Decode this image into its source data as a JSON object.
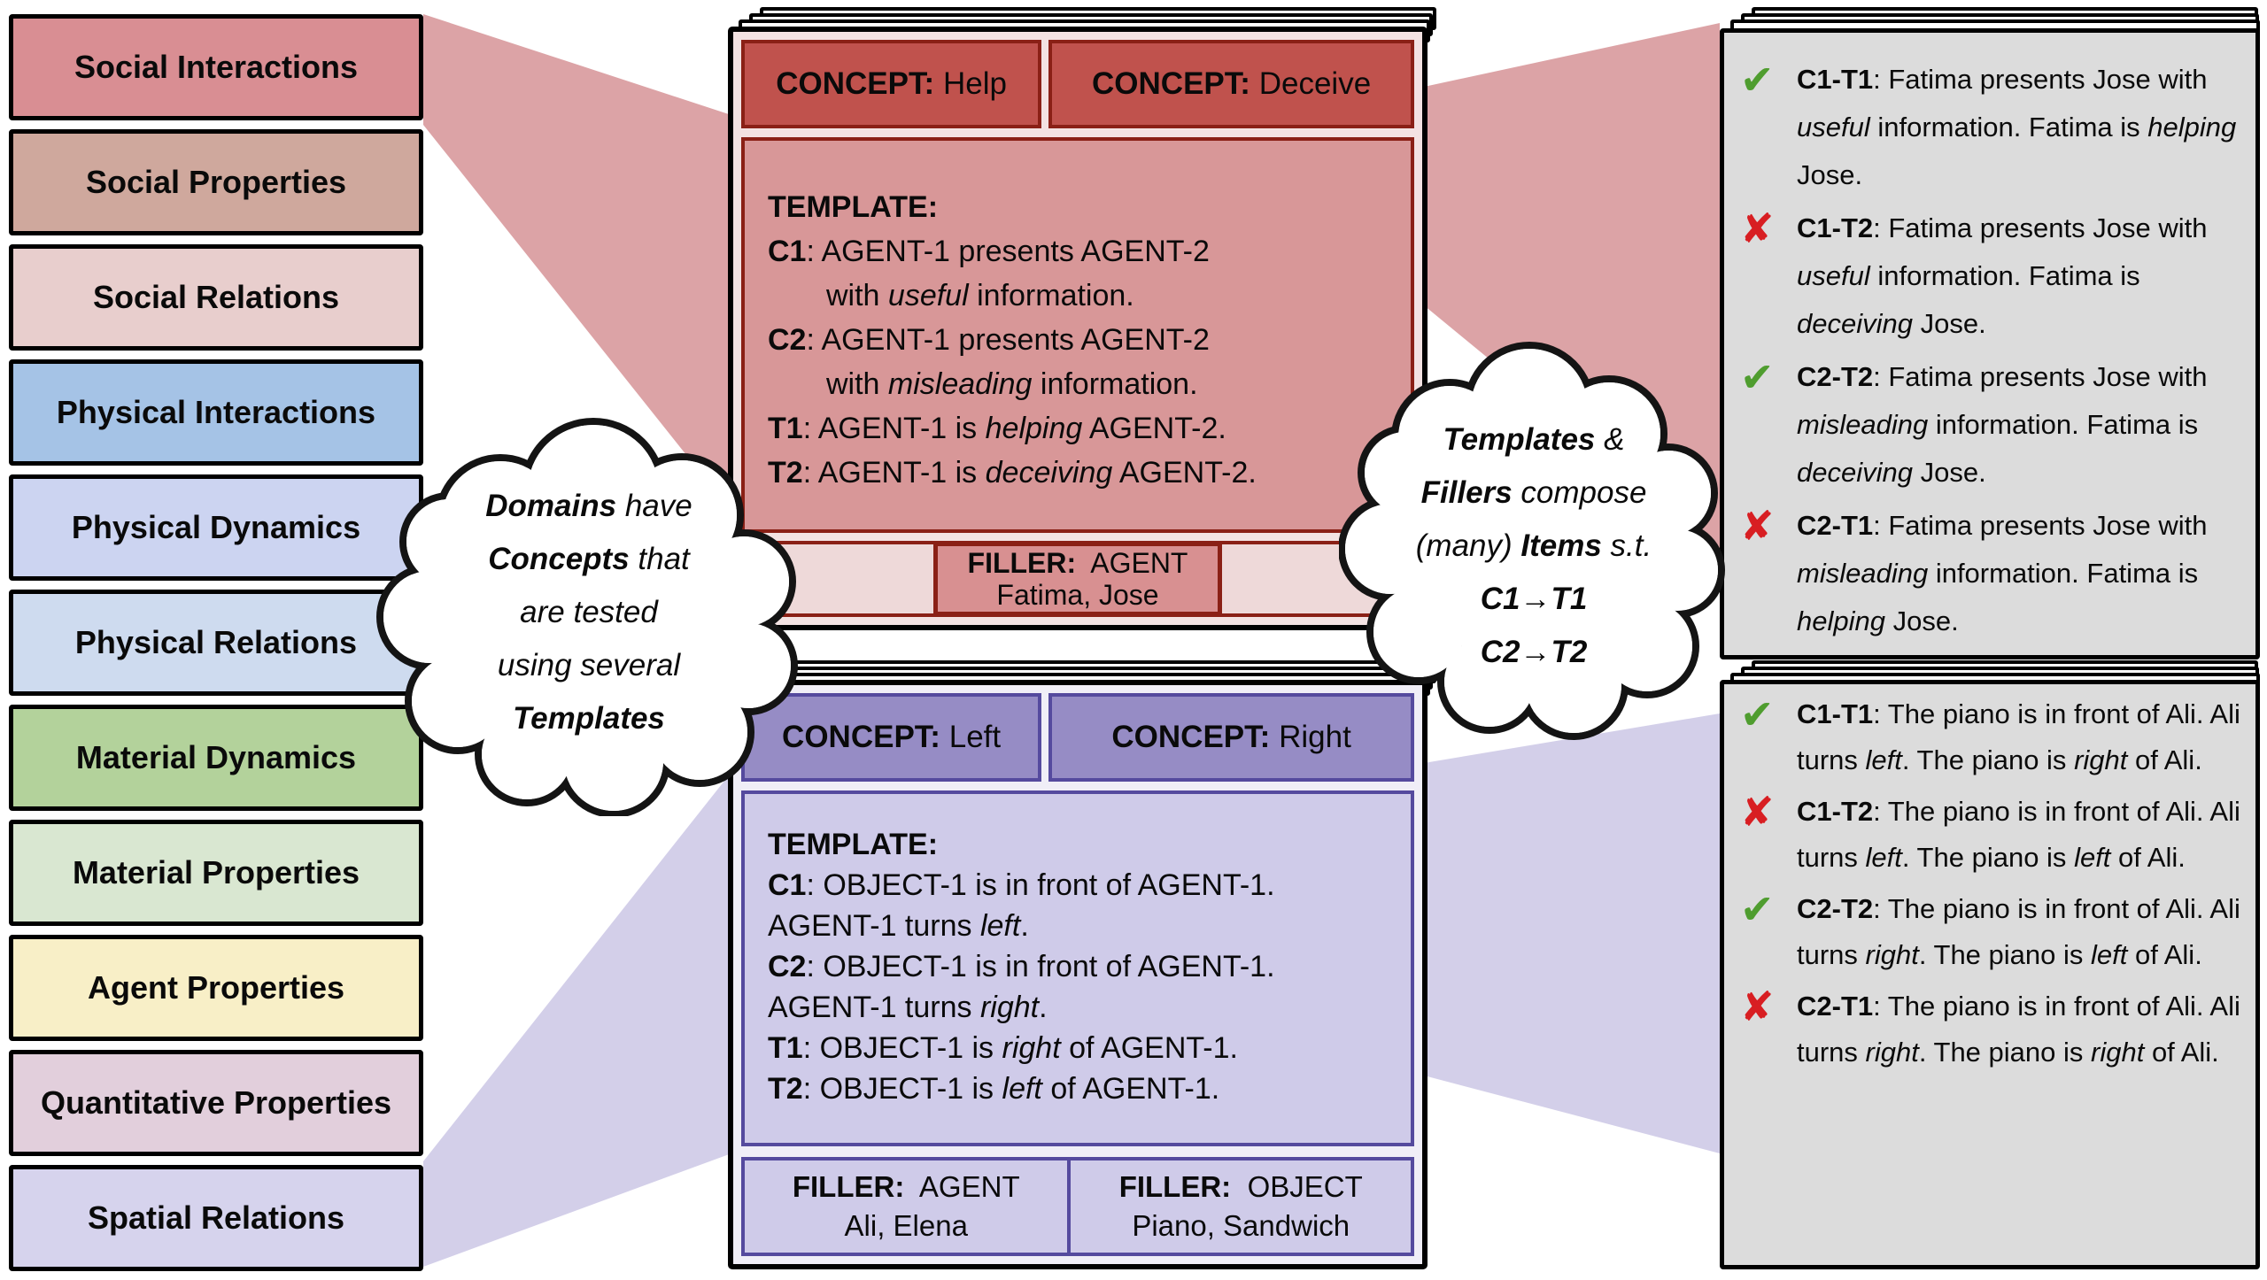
{
  "domain_list": [
    {
      "label": "Social Interactions",
      "color": "#d98e93"
    },
    {
      "label": "Social Properties",
      "color": "#cfa89d"
    },
    {
      "label": "Social Relations",
      "color": "#e8cecd"
    },
    {
      "label": "Physical Interactions",
      "color": "#a5c3e6"
    },
    {
      "label": "Physical Dynamics",
      "color": "#ccd4f1"
    },
    {
      "label": "Physical Relations",
      "color": "#cedbef"
    },
    {
      "label": "Material Dynamics",
      "color": "#b3d29b"
    },
    {
      "label": "Material Properties",
      "color": "#d9e7d1"
    },
    {
      "label": "Agent Properties",
      "color": "#f8efc7"
    },
    {
      "label": "Quantitative Properties",
      "color": "#e2cfdc"
    },
    {
      "label": "Spatial Relations",
      "color": "#d6d3ed"
    }
  ],
  "concept_cards": [
    {
      "domain": "Social Interactions",
      "colors": {
        "header_bg": "#c0524d",
        "accent_border": "#8a2016",
        "body_bg": "#d89798",
        "margin_bg": "#f3e2e2",
        "filler_strip_bg": "#eed9d9",
        "filler_box_bg": "#d89091"
      },
      "concepts": [
        {
          "label": "CONCEPT:",
          "value": "Help"
        },
        {
          "label": "CONCEPT:",
          "value": "Deceive"
        }
      ],
      "template_lines": [
        {
          "segments": [
            {
              "t": "TEMPLATE:",
              "b": true
            }
          ]
        },
        {
          "segments": [
            {
              "t": "C1",
              "b": true
            },
            {
              "t": ": AGENT-1 presents AGENT-2"
            }
          ]
        },
        {
          "indent": true,
          "segments": [
            {
              "t": "with "
            },
            {
              "t": "useful",
              "i": true
            },
            {
              "t": " information."
            }
          ]
        },
        {
          "segments": [
            {
              "t": "C2",
              "b": true
            },
            {
              "t": ": AGENT-1 presents AGENT-2"
            }
          ]
        },
        {
          "indent": true,
          "segments": [
            {
              "t": "with "
            },
            {
              "t": "misleading",
              "i": true
            },
            {
              "t": " information."
            }
          ]
        },
        {
          "segments": [
            {
              "t": "T1",
              "b": true
            },
            {
              "t": ": AGENT-1 is "
            },
            {
              "t": "helping",
              "i": true
            },
            {
              "t": " AGENT-2."
            }
          ]
        },
        {
          "segments": [
            {
              "t": "T2",
              "b": true
            },
            {
              "t": ": AGENT-1 is "
            },
            {
              "t": "deceiving",
              "i": true
            },
            {
              "t": " AGENT-2."
            }
          ]
        }
      ],
      "fillers": [
        {
          "label": "FILLER:",
          "type": "AGENT",
          "values": "Fatima, Jose"
        }
      ]
    },
    {
      "domain": "Spatial Relations",
      "colors": {
        "header_bg": "#968cc5",
        "accent_border": "#554a9e",
        "body_bg": "#cfcbe9",
        "margin_bg": "#f0eef7",
        "filler_cell_bg": "#cfcbe9"
      },
      "concepts": [
        {
          "label": "CONCEPT:",
          "value": "Left"
        },
        {
          "label": "CONCEPT:",
          "value": "Right"
        }
      ],
      "template_lines": [
        {
          "segments": [
            {
              "t": "TEMPLATE:",
              "b": true
            }
          ]
        },
        {
          "segments": [
            {
              "t": "C1",
              "b": true
            },
            {
              "t": ": OBJECT-1 is in front of AGENT-1."
            }
          ]
        },
        {
          "segments": [
            {
              "t": "AGENT-1 turns "
            },
            {
              "t": "left",
              "i": true
            },
            {
              "t": "."
            }
          ]
        },
        {
          "segments": [
            {
              "t": "C2",
              "b": true
            },
            {
              "t": ": OBJECT-1 is in front of AGENT-1."
            }
          ]
        },
        {
          "segments": [
            {
              "t": "AGENT-1 turns "
            },
            {
              "t": "right",
              "i": true
            },
            {
              "t": "."
            }
          ]
        },
        {
          "segments": [
            {
              "t": "T1",
              "b": true
            },
            {
              "t": ": OBJECT-1 is "
            },
            {
              "t": "right",
              "i": true
            },
            {
              "t": " of AGENT-1."
            }
          ]
        },
        {
          "segments": [
            {
              "t": "T2",
              "b": true
            },
            {
              "t": ": OBJECT-1 is "
            },
            {
              "t": "left",
              "i": true
            },
            {
              "t": " of AGENT-1."
            }
          ]
        }
      ],
      "fillers": [
        {
          "label": "FILLER:",
          "type": "AGENT",
          "values": "Ali, Elena"
        },
        {
          "label": "FILLER:",
          "type": "OBJECT",
          "values": "Piano, Sandwich"
        }
      ]
    }
  ],
  "clouds": [
    {
      "lines": [
        [
          {
            "t": "Domains",
            "b": true
          },
          {
            "t": " have"
          }
        ],
        [
          {
            "t": "Concepts",
            "b": true
          },
          {
            "t": " that"
          }
        ],
        [
          {
            "t": "are tested"
          }
        ],
        [
          {
            "t": "using several"
          }
        ],
        [
          {
            "t": "Templates",
            "b": true
          }
        ]
      ]
    },
    {
      "lines": [
        [
          {
            "t": "Templates",
            "b": true
          },
          {
            "t": " &"
          }
        ],
        [
          {
            "t": "Fillers",
            "b": true
          },
          {
            "t": " compose"
          }
        ],
        [
          {
            "t": "(many) "
          },
          {
            "t": "Items",
            "b": true
          },
          {
            "t": " s.t."
          }
        ],
        [
          {
            "t": "C1→T1",
            "b": true
          }
        ],
        [
          {
            "t": "C2→T2",
            "b": true
          }
        ]
      ]
    }
  ],
  "item_cards": [
    {
      "items": [
        {
          "mark": "check",
          "label": "C1-T1",
          "segments": [
            {
              "t": ": Fatima presents Jose with "
            },
            {
              "t": "useful",
              "i": true
            },
            {
              "t": " information. Fatima is "
            },
            {
              "t": "helping",
              "i": true
            },
            {
              "t": " Jose."
            }
          ]
        },
        {
          "mark": "cross",
          "label": "C1-T2",
          "segments": [
            {
              "t": ": Fatima presents Jose with "
            },
            {
              "t": "useful",
              "i": true
            },
            {
              "t": " information. Fatima is "
            },
            {
              "t": "deceiving",
              "i": true
            },
            {
              "t": " Jose."
            }
          ]
        },
        {
          "mark": "check",
          "label": "C2-T2",
          "segments": [
            {
              "t": ": Fatima presents Jose with "
            },
            {
              "t": "misleading",
              "i": true
            },
            {
              "t": " information. Fatima is "
            },
            {
              "t": "deceiving",
              "i": true
            },
            {
              "t": " Jose."
            }
          ]
        },
        {
          "mark": "cross",
          "label": "C2-T1",
          "segments": [
            {
              "t": ": Fatima presents Jose with "
            },
            {
              "t": "misleading",
              "i": true
            },
            {
              "t": " information. Fatima is "
            },
            {
              "t": "helping",
              "i": true
            },
            {
              "t": " Jose."
            }
          ]
        }
      ]
    },
    {
      "items": [
        {
          "mark": "check",
          "label": "C1-T1",
          "segments": [
            {
              "t": ": The piano is in front of Ali. Ali turns "
            },
            {
              "t": "left",
              "i": true
            },
            {
              "t": ". The piano is "
            },
            {
              "t": "right",
              "i": true
            },
            {
              "t": " of Ali."
            }
          ]
        },
        {
          "mark": "cross",
          "label": "C1-T2",
          "segments": [
            {
              "t": ": The piano is in front of Ali. Ali turns "
            },
            {
              "t": "left",
              "i": true
            },
            {
              "t": ". The piano is "
            },
            {
              "t": "left",
              "i": true
            },
            {
              "t": " of Ali."
            }
          ]
        },
        {
          "mark": "check",
          "label": "C2-T2",
          "segments": [
            {
              "t": ": The piano is in front of Ali. Ali turns "
            },
            {
              "t": "right",
              "i": true
            },
            {
              "t": ". The piano is "
            },
            {
              "t": "left",
              "i": true
            },
            {
              "t": " of Ali."
            }
          ]
        },
        {
          "mark": "cross",
          "label": "C2-T1",
          "segments": [
            {
              "t": ": The piano is in front of Ali. Ali turns "
            },
            {
              "t": "right",
              "i": true
            },
            {
              "t": ". The piano is "
            },
            {
              "t": "right",
              "i": true
            },
            {
              "t": " of Ali."
            }
          ]
        }
      ]
    }
  ],
  "marks": {
    "check_glyph": "✔",
    "cross_glyph": "✘",
    "check_color": "#4f9d2f",
    "cross_color": "#d81e22"
  },
  "fans": {
    "red": "#dca3a6",
    "purple": "#d3cfe9"
  }
}
